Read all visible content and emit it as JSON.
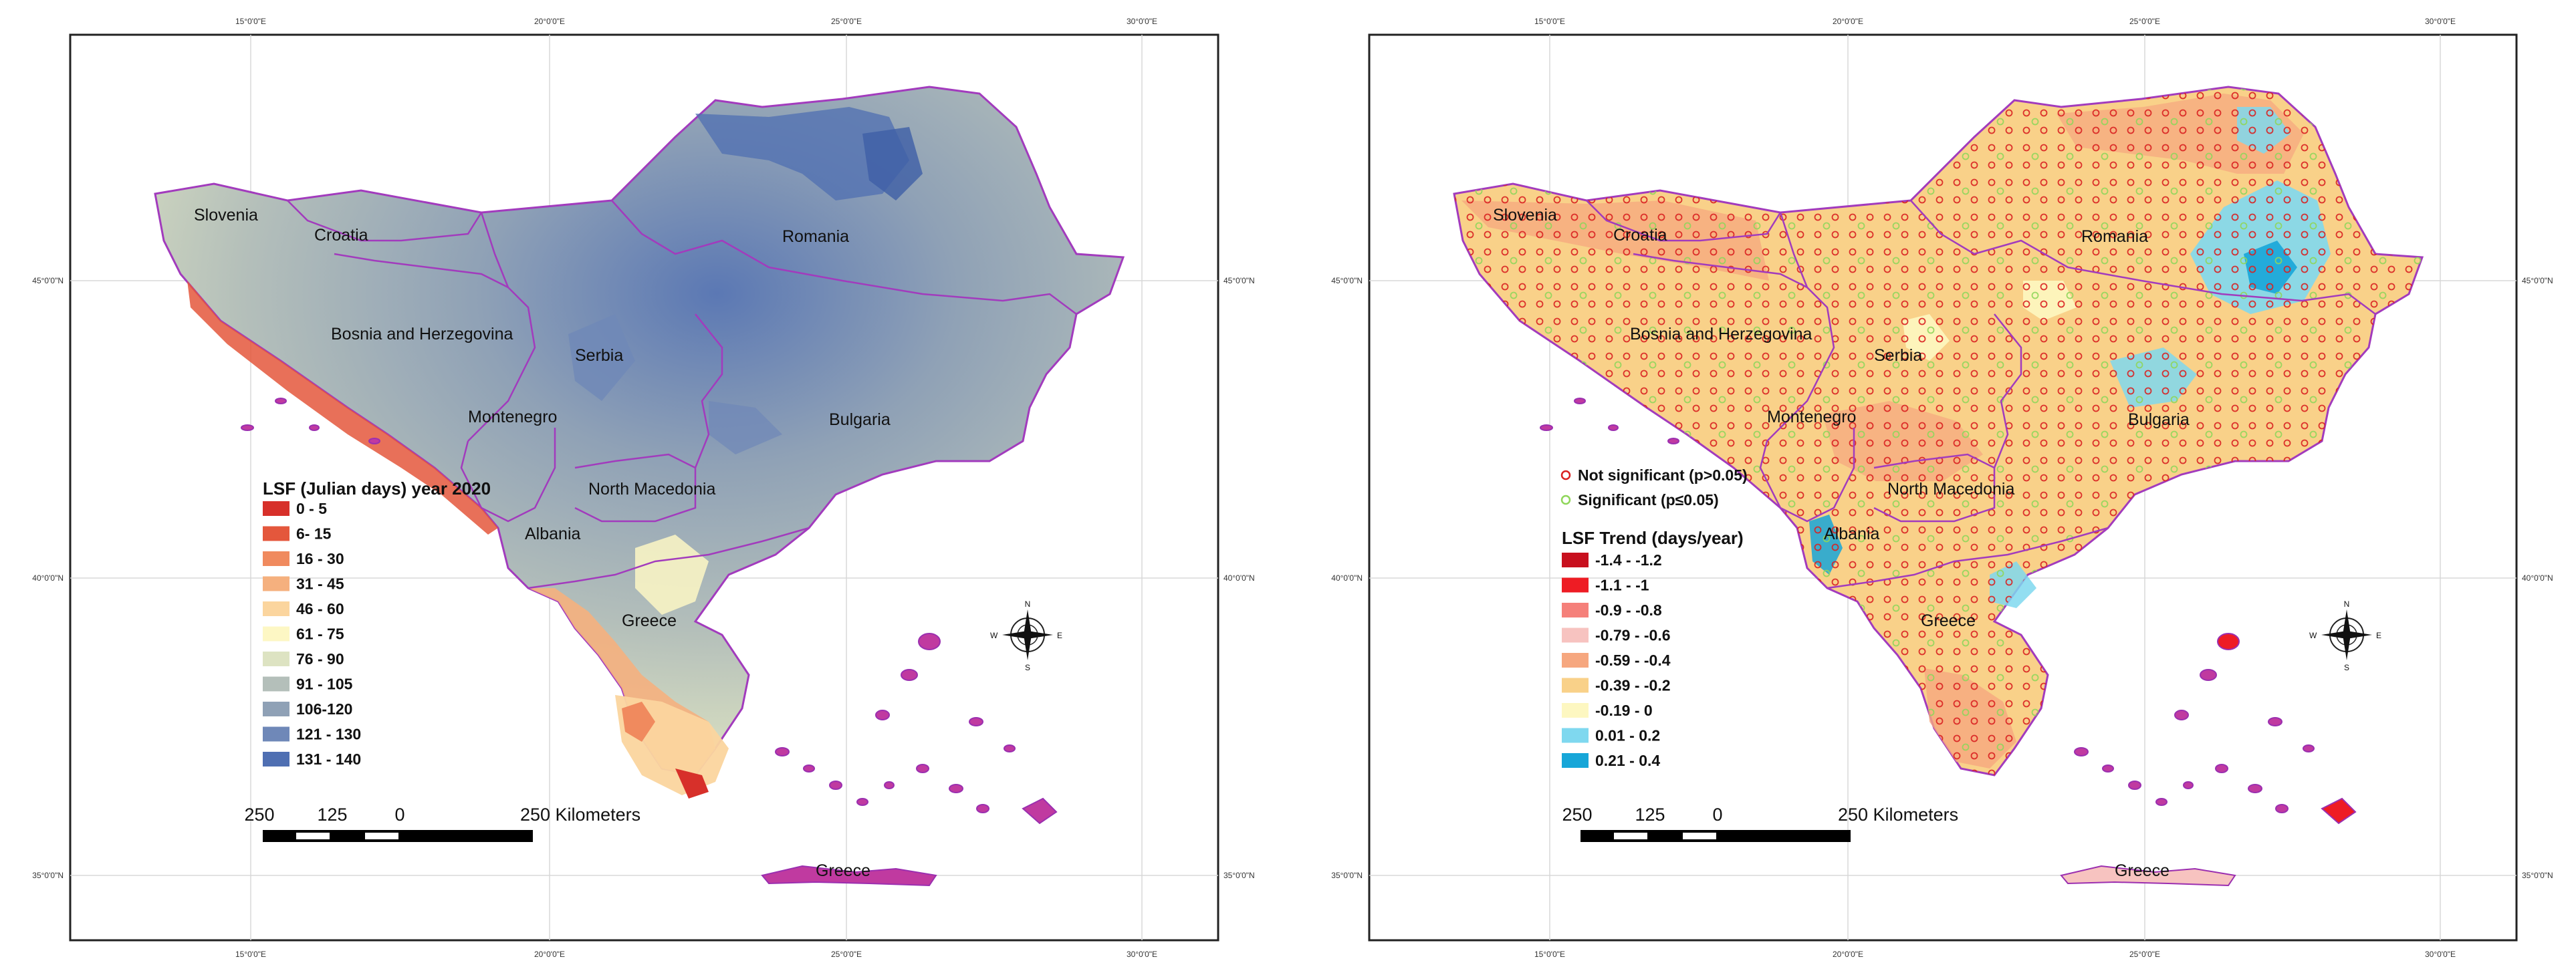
{
  "left_map": {
    "x_ticks": [
      "15°0'0\"E",
      "20°0'0\"E",
      "25°0'0\"E",
      "30°0'0\"E"
    ],
    "y_ticks": [
      "45°0'0\"N",
      "40°0'0\"N",
      "35°0'0\"N"
    ],
    "countries": [
      "Slovenia",
      "Croatia",
      "Bosnia and Herzegovina",
      "Serbia",
      "Romania",
      "Montenegro",
      "Bulgaria",
      "North Macedonia",
      "Albania",
      "Greece",
      "Greece"
    ],
    "legend": {
      "title": "LSF (Julian days) year 2020",
      "items": [
        {
          "label": "0 - 5",
          "color": "#d7302a"
        },
        {
          "label": "6- 15",
          "color": "#e4573c"
        },
        {
          "label": "16 - 30",
          "color": "#f08a5e"
        },
        {
          "label": "31 - 45",
          "color": "#f5b07e"
        },
        {
          "label": "46 - 60",
          "color": "#fbd59e"
        },
        {
          "label": "61 - 75",
          "color": "#fdf7c4"
        },
        {
          "label": "76 - 90",
          "color": "#dde3c2"
        },
        {
          "label": "91 - 105",
          "color": "#b4bfba"
        },
        {
          "label": "106-120",
          "color": "#8fa1b6"
        },
        {
          "label": "121 - 130",
          "color": "#6f88b8"
        },
        {
          "label": "131 - 140",
          "color": "#4f6fb2"
        }
      ]
    },
    "scale_labels": [
      "250",
      "125",
      "0",
      "250 Kilometers"
    ]
  },
  "right_map": {
    "x_ticks": [
      "15°0'0\"E",
      "20°0'0\"E",
      "25°0'0\"E",
      "30°0'0\"E"
    ],
    "y_ticks": [
      "45°0'0\"N",
      "40°0'0\"N",
      "35°0'0\"N"
    ],
    "countries": [
      "Slovenia",
      "Croatia",
      "Bosnia and Herzegovina",
      "Serbia",
      "Romania",
      "Montenegro",
      "Bulgaria",
      "North Macedonia",
      "Albania",
      "Greece",
      "Greece"
    ],
    "significance_legend": [
      {
        "label": "Not significant (p>0.05)",
        "color": "#d92020"
      },
      {
        "label": "Significant (p≤0.05)",
        "color": "#8fd65a"
      }
    ],
    "legend": {
      "title": "LSF Trend (days/year)",
      "items": [
        {
          "label": "-1.4 - -1.2",
          "color": "#c8101e"
        },
        {
          "label": "-1.1 - -1",
          "color": "#ee1c24"
        },
        {
          "label": "-0.9 - -0.8",
          "color": "#f5807a"
        },
        {
          "label": "-0.79 - -0.6",
          "color": "#f7c3c0"
        },
        {
          "label": "-0.59 - -0.4",
          "color": "#f6a77f"
        },
        {
          "label": "-0.39 - -0.2",
          "color": "#f9d189"
        },
        {
          "label": "-0.19 - 0",
          "color": "#fdf7c1"
        },
        {
          "label": "0.01 - 0.2",
          "color": "#7fd8ef"
        },
        {
          "label": "0.21 - 0.4",
          "color": "#17a6d8"
        }
      ]
    },
    "scale_labels": [
      "250",
      "125",
      "0",
      "250 Kilometers"
    ]
  },
  "compass": {
    "n": "N",
    "s": "S",
    "e": "E",
    "w": "W"
  }
}
